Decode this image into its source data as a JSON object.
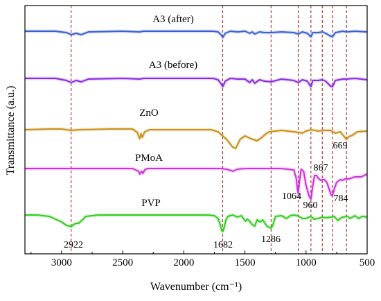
{
  "chart_data": {
    "type": "line",
    "title": "",
    "xlabel": "Wavenumber (cm⁻¹)",
    "ylabel": "Transmittance (a.u.)",
    "xlim": [
      3300,
      500
    ],
    "x_ticks": [
      3000,
      2500,
      2000,
      1500,
      1000,
      500
    ],
    "y_ticks": [],
    "grid": false,
    "legend": "none",
    "reference_lines": [
      2922,
      1682,
      1286,
      1064,
      960,
      867,
      784,
      669
    ],
    "annotations": [
      {
        "text": "2922",
        "x": 2922
      },
      {
        "text": "1682",
        "x": 1682
      },
      {
        "text": "1286",
        "x": 1286
      },
      {
        "text": "1064",
        "x": 1064
      },
      {
        "text": "960",
        "x": 960
      },
      {
        "text": "867",
        "x": 867
      },
      {
        "text": "784",
        "x": 784
      },
      {
        "text": "669",
        "x": 669
      }
    ],
    "series": [
      {
        "name": "A3 (after)",
        "color": "#3b5fd0",
        "points": [
          [
            3300,
            0
          ],
          [
            3050,
            0
          ],
          [
            2960,
            -2
          ],
          [
            2922,
            -5
          ],
          [
            2880,
            -3
          ],
          [
            2840,
            -5
          ],
          [
            2780,
            -1
          ],
          [
            2500,
            0
          ],
          [
            2360,
            -1
          ],
          [
            2330,
            0
          ],
          [
            2000,
            0
          ],
          [
            1760,
            0
          ],
          [
            1720,
            -1
          ],
          [
            1690,
            -6
          ],
          [
            1682,
            -9
          ],
          [
            1660,
            -3
          ],
          [
            1620,
            0
          ],
          [
            1560,
            -1
          ],
          [
            1500,
            0
          ],
          [
            1460,
            -3
          ],
          [
            1440,
            -1
          ],
          [
            1420,
            -4
          ],
          [
            1380,
            -1
          ],
          [
            1340,
            -2
          ],
          [
            1286,
            -2
          ],
          [
            1200,
            -1
          ],
          [
            1100,
            -2
          ],
          [
            1064,
            -4
          ],
          [
            1030,
            -1
          ],
          [
            990,
            -3
          ],
          [
            960,
            -8
          ],
          [
            945,
            -2
          ],
          [
            900,
            -2
          ],
          [
            867,
            -1
          ],
          [
            840,
            -3
          ],
          [
            800,
            -7
          ],
          [
            784,
            -8
          ],
          [
            760,
            -2
          ],
          [
            700,
            0
          ],
          [
            669,
            -1
          ],
          [
            600,
            0
          ],
          [
            500,
            -1
          ]
        ]
      },
      {
        "name": "A3 (before)",
        "color": "#8a2be2",
        "points": [
          [
            3300,
            0
          ],
          [
            3050,
            0
          ],
          [
            2960,
            -3
          ],
          [
            2922,
            -6
          ],
          [
            2880,
            -3
          ],
          [
            2840,
            -5
          ],
          [
            2780,
            -1
          ],
          [
            2500,
            0
          ],
          [
            2360,
            -1
          ],
          [
            2330,
            0
          ],
          [
            2000,
            0
          ],
          [
            1760,
            0
          ],
          [
            1720,
            -2
          ],
          [
            1690,
            -9
          ],
          [
            1682,
            -12
          ],
          [
            1660,
            -4
          ],
          [
            1620,
            0
          ],
          [
            1560,
            -1
          ],
          [
            1500,
            -1
          ],
          [
            1460,
            -6
          ],
          [
            1440,
            -2
          ],
          [
            1420,
            -7
          ],
          [
            1380,
            -2
          ],
          [
            1340,
            -4
          ],
          [
            1286,
            -5
          ],
          [
            1200,
            -1
          ],
          [
            1100,
            -3
          ],
          [
            1064,
            -6
          ],
          [
            1030,
            -2
          ],
          [
            990,
            -4
          ],
          [
            960,
            -12
          ],
          [
            945,
            -3
          ],
          [
            900,
            -3
          ],
          [
            867,
            -2
          ],
          [
            840,
            -4
          ],
          [
            800,
            -11
          ],
          [
            784,
            -12
          ],
          [
            760,
            -3
          ],
          [
            700,
            -1
          ],
          [
            669,
            -1
          ],
          [
            600,
            0
          ],
          [
            500,
            -2
          ]
        ]
      },
      {
        "name": "ZnO",
        "color": "#c9901a",
        "points": [
          [
            3300,
            0
          ],
          [
            3100,
            1
          ],
          [
            3000,
            1
          ],
          [
            2922,
            -1
          ],
          [
            2850,
            0
          ],
          [
            2600,
            1
          ],
          [
            2420,
            1
          ],
          [
            2380,
            -4
          ],
          [
            2362,
            -13
          ],
          [
            2350,
            -6
          ],
          [
            2340,
            -11
          ],
          [
            2320,
            -3
          ],
          [
            2280,
            0
          ],
          [
            2000,
            0
          ],
          [
            1780,
            0
          ],
          [
            1720,
            -3
          ],
          [
            1650,
            -14
          ],
          [
            1600,
            -25
          ],
          [
            1575,
            -27
          ],
          [
            1540,
            -14
          ],
          [
            1500,
            -9
          ],
          [
            1450,
            -13
          ],
          [
            1400,
            -16
          ],
          [
            1360,
            -11
          ],
          [
            1330,
            -6
          ],
          [
            1300,
            -3
          ],
          [
            1200,
            -1
          ],
          [
            1100,
            -3
          ],
          [
            1060,
            -4
          ],
          [
            1030,
            -5
          ],
          [
            1000,
            -2
          ],
          [
            960,
            0
          ],
          [
            900,
            -2
          ],
          [
            850,
            -1
          ],
          [
            800,
            -1
          ],
          [
            760,
            -5
          ],
          [
            720,
            -3
          ],
          [
            669,
            -14
          ],
          [
            650,
            -10
          ],
          [
            620,
            -8
          ],
          [
            580,
            -3
          ],
          [
            500,
            -2
          ]
        ]
      },
      {
        "name": "PMoA",
        "color": "#cc33dd",
        "points": [
          [
            3300,
            0
          ],
          [
            3050,
            0
          ],
          [
            2922,
            0
          ],
          [
            2800,
            0
          ],
          [
            2500,
            0
          ],
          [
            2420,
            0
          ],
          [
            2370,
            -4
          ],
          [
            2360,
            -8
          ],
          [
            2345,
            -4
          ],
          [
            2335,
            -7
          ],
          [
            2320,
            -2
          ],
          [
            2300,
            0
          ],
          [
            2000,
            0
          ],
          [
            1700,
            0
          ],
          [
            1650,
            -1
          ],
          [
            1610,
            -3
          ],
          [
            1600,
            -4
          ],
          [
            1560,
            -1
          ],
          [
            1500,
            0
          ],
          [
            1300,
            0
          ],
          [
            1200,
            0
          ],
          [
            1100,
            -2
          ],
          [
            1080,
            -14
          ],
          [
            1070,
            -30
          ],
          [
            1064,
            -36
          ],
          [
            1055,
            -20
          ],
          [
            1040,
            -1
          ],
          [
            1020,
            -4
          ],
          [
            1000,
            -24
          ],
          [
            975,
            -40
          ],
          [
            960,
            -44
          ],
          [
            945,
            -25
          ],
          [
            930,
            -10
          ],
          [
            915,
            -10
          ],
          [
            900,
            -14
          ],
          [
            880,
            -17
          ],
          [
            867,
            -16
          ],
          [
            850,
            -16
          ],
          [
            830,
            -20
          ],
          [
            810,
            -30
          ],
          [
            795,
            -38
          ],
          [
            784,
            -39
          ],
          [
            770,
            -30
          ],
          [
            750,
            -20
          ],
          [
            720,
            -16
          ],
          [
            700,
            -17
          ],
          [
            680,
            -15
          ],
          [
            650,
            -15
          ],
          [
            600,
            -12
          ],
          [
            550,
            -12
          ],
          [
            500,
            -8
          ]
        ]
      },
      {
        "name": "PVP",
        "color": "#33cc22",
        "points": [
          [
            3300,
            0
          ],
          [
            3200,
            0
          ],
          [
            3100,
            -2
          ],
          [
            3000,
            -10
          ],
          [
            2960,
            -15
          ],
          [
            2935,
            -16
          ],
          [
            2922,
            -17
          ],
          [
            2905,
            -14
          ],
          [
            2880,
            -12
          ],
          [
            2860,
            -12
          ],
          [
            2800,
            -2
          ],
          [
            2700,
            0
          ],
          [
            2500,
            0
          ],
          [
            2000,
            0
          ],
          [
            1900,
            0
          ],
          [
            1800,
            0
          ],
          [
            1750,
            -1
          ],
          [
            1720,
            -5
          ],
          [
            1700,
            -15
          ],
          [
            1690,
            -22
          ],
          [
            1682,
            -24
          ],
          [
            1670,
            -18
          ],
          [
            1655,
            -7
          ],
          [
            1640,
            -2
          ],
          [
            1600,
            0
          ],
          [
            1560,
            -3
          ],
          [
            1530,
            -1
          ],
          [
            1495,
            -9
          ],
          [
            1480,
            -6
          ],
          [
            1460,
            -9
          ],
          [
            1440,
            -14
          ],
          [
            1420,
            -16
          ],
          [
            1400,
            -7
          ],
          [
            1375,
            -10
          ],
          [
            1355,
            -7
          ],
          [
            1320,
            -16
          ],
          [
            1300,
            -18
          ],
          [
            1286,
            -19
          ],
          [
            1270,
            -14
          ],
          [
            1250,
            -2
          ],
          [
            1200,
            -1
          ],
          [
            1160,
            -5
          ],
          [
            1130,
            -1
          ],
          [
            1100,
            0
          ],
          [
            1070,
            -1
          ],
          [
            1030,
            -5
          ],
          [
            1000,
            -5
          ],
          [
            960,
            -2
          ],
          [
            935,
            -6
          ],
          [
            900,
            -5
          ],
          [
            867,
            -3
          ],
          [
            840,
            -4
          ],
          [
            790,
            -3
          ],
          [
            770,
            -2
          ],
          [
            740,
            -8
          ],
          [
            720,
            -5
          ],
          [
            700,
            -3
          ],
          [
            660,
            -2
          ],
          [
            640,
            -5
          ],
          [
            600,
            -1
          ],
          [
            570,
            -5
          ],
          [
            540,
            -2
          ],
          [
            500,
            -3
          ]
        ]
      }
    ]
  }
}
